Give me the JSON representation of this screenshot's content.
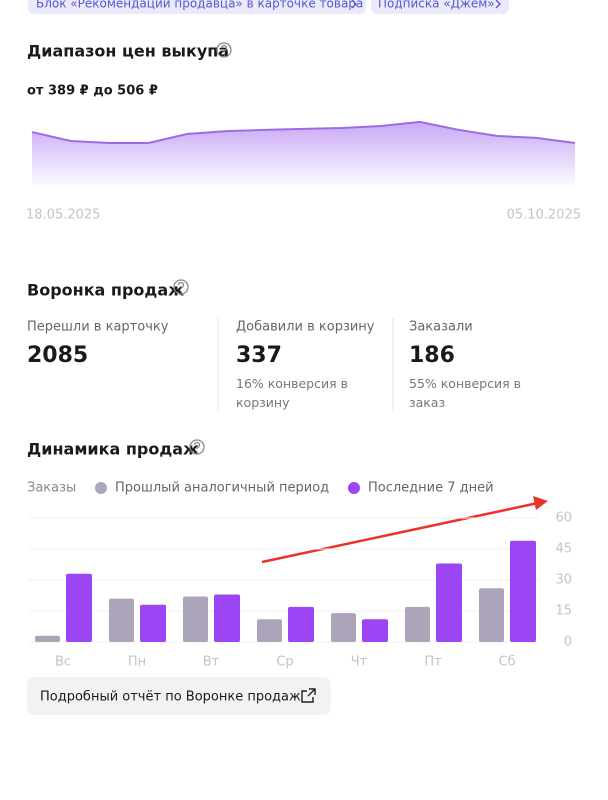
{
  "tags": [
    "Блок «Рекомендации продавца» в карточке товара",
    "Подписка «Джем»"
  ],
  "chart_data": [
    {
      "type": "area",
      "title": "Диапазон цен выкупа",
      "subtitle": "от 389 ₽ до 506 ₽",
      "categories": [
        "18.05.2025",
        null,
        null,
        null,
        null,
        null,
        null,
        null,
        null,
        null,
        null,
        null,
        null,
        null,
        "05.10.2025"
      ],
      "values": [
        447,
        401,
        391,
        391,
        437,
        452,
        458,
        463,
        468,
        478,
        499,
        458,
        427,
        417,
        391
      ],
      "ylim": [
        150,
        560
      ],
      "color": "#9b6ce8"
    },
    {
      "type": "bar",
      "title": "Динамика продаж",
      "legend_title": "Заказы",
      "categories": [
        "Вс",
        "Пн",
        "Вт",
        "Ср",
        "Чт",
        "Пт",
        "Сб"
      ],
      "series": [
        {
          "name": "Прошлый аналогичный период",
          "color": "#aca4b8",
          "values": [
            3,
            21,
            22,
            11,
            14,
            17,
            26
          ]
        },
        {
          "name": "Последние 7 дней",
          "color": "#9b45f5",
          "values": [
            33,
            18,
            23,
            17,
            11,
            38,
            49
          ]
        }
      ],
      "ylim": [
        0,
        60
      ],
      "yticks": [
        0,
        15,
        30,
        45,
        60
      ],
      "grid": true
    }
  ],
  "funnel": {
    "title": "Воронка продаж",
    "columns": [
      {
        "label": "Перешли в карточку",
        "value": 2085
      },
      {
        "label": "Добавили в корзину",
        "value": 337,
        "note": "16% конверсия в корзину"
      },
      {
        "label": "Заказали",
        "value": 186,
        "note": "55% конверсия в заказ"
      }
    ]
  },
  "report_link": "Подробный отчёт по Воронке продаж"
}
